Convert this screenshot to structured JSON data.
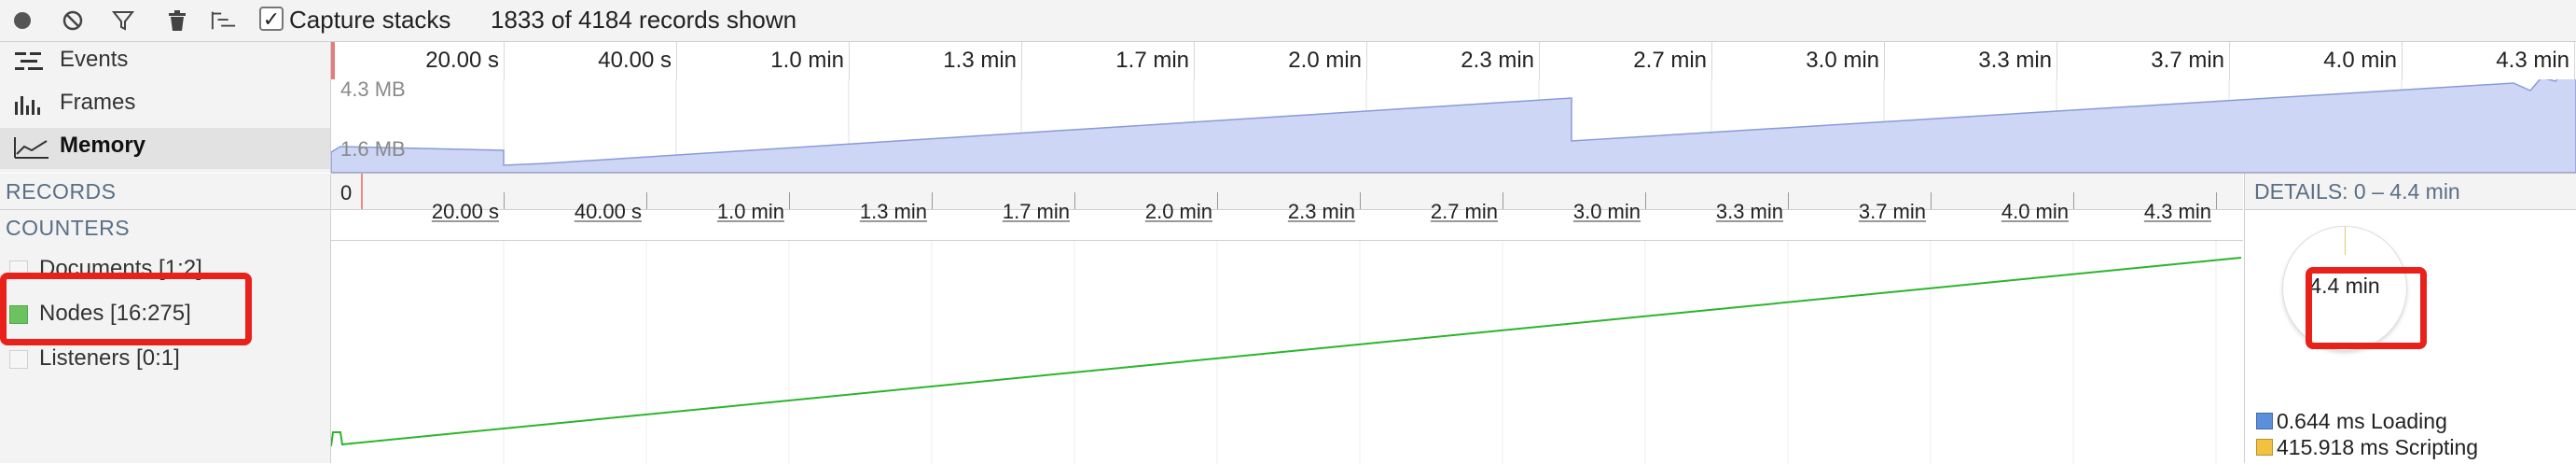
{
  "toolbar": {
    "icons": [
      "record-icon",
      "clear-icon",
      "filter-icon",
      "trash-icon",
      "flame-chart-icon"
    ],
    "capture_stacks_label": "Capture stacks",
    "capture_stacks_checked": "✓",
    "records_shown": "1833 of 4184 records shown"
  },
  "overview": {
    "items": [
      {
        "label": "Events",
        "icon": "events-icon"
      },
      {
        "label": "Frames",
        "icon": "frames-icon"
      },
      {
        "label": "Memory",
        "icon": "memory-icon",
        "selected": true
      }
    ],
    "ticks": [
      "20.00 s",
      "40.00 s",
      "1.0 min",
      "1.3 min",
      "1.7 min",
      "2.0 min",
      "2.3 min",
      "2.7 min",
      "3.0 min",
      "3.3 min",
      "3.7 min",
      "4.0 min",
      "4.3 min"
    ],
    "memory_max_label": "4.3 MB",
    "memory_min_label": "1.6 MB"
  },
  "records": {
    "label": "RECORDS",
    "zero_label": "0",
    "ticks": [
      "20.00 s",
      "40.00 s",
      "1.0 min",
      "1.3 min",
      "1.7 min",
      "2.0 min",
      "2.3 min",
      "2.7 min",
      "3.0 min",
      "3.3 min",
      "3.7 min",
      "4.0 min",
      "4.3 min"
    ]
  },
  "counters": {
    "title": "COUNTERS",
    "items": [
      {
        "label": "Documents [1:2]",
        "color": "#f6f6f6"
      },
      {
        "label": "Nodes [16:275]",
        "color": "#6bc35f"
      },
      {
        "label": "Listeners [0:1]",
        "color": "#f6f6f6"
      }
    ],
    "nodes_line_color": "#2bb52b"
  },
  "details": {
    "title": "DETAILS: 0 – 4.4 min",
    "total": "4.4 min",
    "legend": [
      {
        "text": "0.644 ms Loading",
        "color": "#5b8fd9"
      },
      {
        "text": "415.918 ms Scripting",
        "color": "#f2c140"
      }
    ]
  },
  "colors": {
    "highlight": "#e8221a",
    "memory_fill": "#cdd6f5",
    "memory_stroke": "#8a9bd8"
  }
}
